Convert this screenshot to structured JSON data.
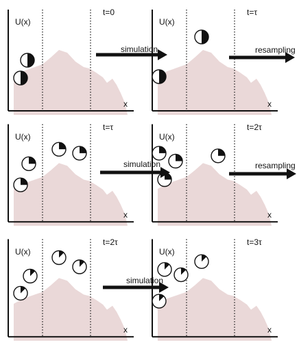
{
  "colors": {
    "landscape": "#ead8d8",
    "ink": "#111111",
    "paper": "#ffffff"
  },
  "panels": [
    {
      "u_label": "U(x)",
      "x_label": "x",
      "time_label": "t=0",
      "particles": [
        {
          "angle": 180
        },
        {
          "angle": 180
        }
      ]
    },
    {
      "u_label": "U(x)",
      "x_label": "x",
      "time_label": "t=τ",
      "particles": [
        {
          "angle": 180
        },
        {
          "angle": 180
        }
      ]
    },
    {
      "u_label": "U(x)",
      "x_label": "x",
      "time_label": "t=τ",
      "particles": [
        {
          "angle": 90
        },
        {
          "angle": 90
        },
        {
          "angle": 90
        },
        {
          "angle": 90
        }
      ]
    },
    {
      "u_label": "U(x)",
      "x_label": "x",
      "time_label": "t=2τ",
      "particles": [
        {
          "angle": 90
        },
        {
          "angle": 90
        },
        {
          "angle": 90
        },
        {
          "angle": 90
        }
      ]
    },
    {
      "u_label": "U(x)",
      "x_label": "x",
      "time_label": "t=2τ",
      "particles": [
        {
          "angle": 45
        },
        {
          "angle": 45
        },
        {
          "angle": 45
        },
        {
          "angle": 45
        }
      ]
    },
    {
      "u_label": "U(x)",
      "x_label": "x",
      "time_label": "t=3τ",
      "particles": [
        {
          "angle": 45
        },
        {
          "angle": 45
        },
        {
          "angle": 45
        },
        {
          "angle": 45
        }
      ]
    }
  ],
  "arrows": [
    {
      "label": "simulation"
    },
    {
      "label": "resampling"
    },
    {
      "label": "simulation"
    },
    {
      "label": "resampling"
    },
    {
      "label": "simulation"
    }
  ]
}
